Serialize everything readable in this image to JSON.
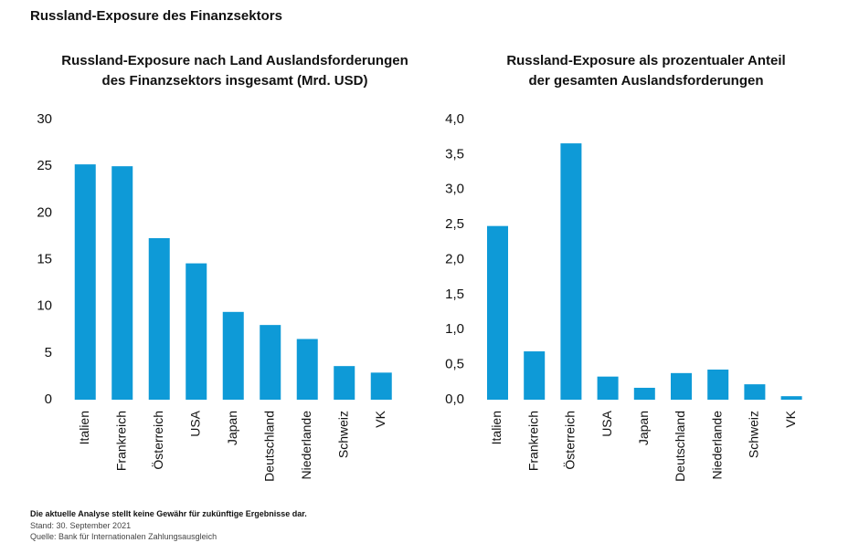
{
  "header": "Russland-Exposure des Finanzsektors",
  "chart_data": [
    {
      "type": "bar",
      "title": [
        "Russland-Exposure nach Land Auslandsforderungen",
        "des Finanzsektors insgesamt (Mrd. USD)"
      ],
      "categories": [
        "Italien",
        "Frankreich",
        "Österreich",
        "USA",
        "Japan",
        "Deutschland",
        "Niederlande",
        "Schweiz",
        "VK"
      ],
      "values": [
        25.2,
        25.0,
        17.3,
        14.6,
        9.4,
        8.0,
        6.5,
        3.6,
        2.9
      ],
      "color": "#0e9ad7",
      "ylim": [
        0,
        30
      ],
      "yticks": [
        0,
        5,
        10,
        15,
        20,
        25,
        30
      ]
    },
    {
      "type": "bar",
      "title": [
        "Russland-Exposure als prozentualer Anteil",
        "der gesamten Auslandsforderungen"
      ],
      "categories": [
        "Italien",
        "Frankreich",
        "Österreich",
        "USA",
        "Japan",
        "Deutschland",
        "Niederlande",
        "Schweiz",
        "VK"
      ],
      "values": [
        2.48,
        0.69,
        3.66,
        0.33,
        0.17,
        0.38,
        0.43,
        0.22,
        0.05
      ],
      "color": "#0e9ad7",
      "ylim": [
        0,
        4
      ],
      "yticks": [
        {
          "value": 0,
          "label": "0,0"
        },
        {
          "value": 0.5,
          "label": "0,5"
        },
        {
          "value": 1,
          "label": "1,0"
        },
        {
          "value": 1.5,
          "label": "1,5"
        },
        {
          "value": 2,
          "label": "2,0"
        },
        {
          "value": 2.5,
          "label": "2,5"
        },
        {
          "value": 3,
          "label": "3,0"
        },
        {
          "value": 3.5,
          "label": "3,5"
        },
        {
          "value": 4,
          "label": "4,0"
        }
      ]
    }
  ],
  "footer": [
    "Die aktuelle Analyse stellt keine Gewähr für zukünftige Ergebnisse dar.",
    "Stand: 30. September 2021",
    "Quelle: Bank für Internationalen Zahlungsausgleich"
  ]
}
